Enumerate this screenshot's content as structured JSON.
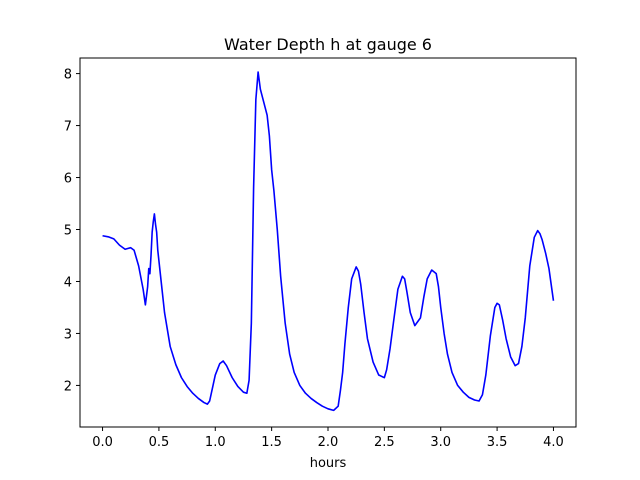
{
  "chart_data": {
    "type": "line",
    "title": "Water Depth h at gauge 6",
    "xlabel": "hours",
    "ylabel": "",
    "xlim": [
      -0.2,
      4.2
    ],
    "ylim": [
      1.2,
      8.3
    ],
    "xticks": [
      0.0,
      0.5,
      1.0,
      1.5,
      2.0,
      2.5,
      3.0,
      3.5,
      4.0
    ],
    "xtick_labels": [
      "0.0",
      "0.5",
      "1.0",
      "1.5",
      "2.0",
      "2.5",
      "3.0",
      "3.5",
      "4.0"
    ],
    "yticks": [
      2,
      3,
      4,
      5,
      6,
      7,
      8
    ],
    "ytick_labels": [
      "2",
      "3",
      "4",
      "5",
      "6",
      "7",
      "8"
    ],
    "grid": false,
    "series": [
      {
        "color": "#0000ff",
        "x": [
          0.0,
          0.05,
          0.1,
          0.15,
          0.2,
          0.25,
          0.28,
          0.32,
          0.36,
          0.38,
          0.4,
          0.41,
          0.42,
          0.43,
          0.44,
          0.45,
          0.46,
          0.47,
          0.48,
          0.49,
          0.52,
          0.55,
          0.6,
          0.65,
          0.7,
          0.75,
          0.8,
          0.85,
          0.9,
          0.93,
          0.95,
          0.98,
          1.0,
          1.04,
          1.07,
          1.1,
          1.15,
          1.2,
          1.25,
          1.28,
          1.3,
          1.32,
          1.34,
          1.36,
          1.38,
          1.4,
          1.43,
          1.46,
          1.48,
          1.5,
          1.52,
          1.55,
          1.58,
          1.62,
          1.66,
          1.7,
          1.75,
          1.8,
          1.85,
          1.9,
          1.95,
          2.0,
          2.05,
          2.09,
          2.11,
          2.13,
          2.15,
          2.18,
          2.21,
          2.25,
          2.27,
          2.29,
          2.32,
          2.35,
          2.4,
          2.45,
          2.5,
          2.52,
          2.55,
          2.58,
          2.62,
          2.66,
          2.68,
          2.7,
          2.73,
          2.77,
          2.82,
          2.85,
          2.88,
          2.92,
          2.96,
          2.98,
          3.0,
          3.03,
          3.06,
          3.1,
          3.15,
          3.2,
          3.25,
          3.3,
          3.34,
          3.37,
          3.4,
          3.44,
          3.48,
          3.5,
          3.52,
          3.55,
          3.58,
          3.62,
          3.66,
          3.69,
          3.72,
          3.75,
          3.79,
          3.83,
          3.86,
          3.88,
          3.9,
          3.93,
          3.96,
          4.0
        ],
        "y": [
          4.88,
          4.86,
          4.82,
          4.7,
          4.62,
          4.65,
          4.6,
          4.3,
          3.85,
          3.55,
          3.9,
          4.25,
          4.15,
          4.5,
          4.95,
          5.15,
          5.3,
          5.1,
          4.95,
          4.6,
          4.0,
          3.4,
          2.75,
          2.4,
          2.15,
          1.98,
          1.85,
          1.75,
          1.67,
          1.64,
          1.7,
          2.0,
          2.2,
          2.42,
          2.47,
          2.38,
          2.15,
          1.98,
          1.87,
          1.85,
          2.1,
          3.2,
          5.8,
          7.5,
          8.03,
          7.7,
          7.45,
          7.2,
          6.8,
          6.15,
          5.75,
          5.0,
          4.1,
          3.2,
          2.6,
          2.25,
          2.0,
          1.85,
          1.75,
          1.67,
          1.6,
          1.55,
          1.52,
          1.6,
          1.9,
          2.25,
          2.8,
          3.5,
          4.05,
          4.28,
          4.2,
          3.95,
          3.4,
          2.9,
          2.45,
          2.2,
          2.15,
          2.3,
          2.7,
          3.2,
          3.85,
          4.1,
          4.05,
          3.8,
          3.4,
          3.15,
          3.3,
          3.7,
          4.05,
          4.22,
          4.15,
          3.9,
          3.5,
          3.0,
          2.6,
          2.25,
          2.0,
          1.87,
          1.77,
          1.72,
          1.7,
          1.82,
          2.2,
          2.95,
          3.5,
          3.58,
          3.55,
          3.25,
          2.9,
          2.55,
          2.38,
          2.42,
          2.75,
          3.3,
          4.3,
          4.85,
          4.98,
          4.92,
          4.8,
          4.55,
          4.25,
          3.63
        ]
      }
    ]
  }
}
